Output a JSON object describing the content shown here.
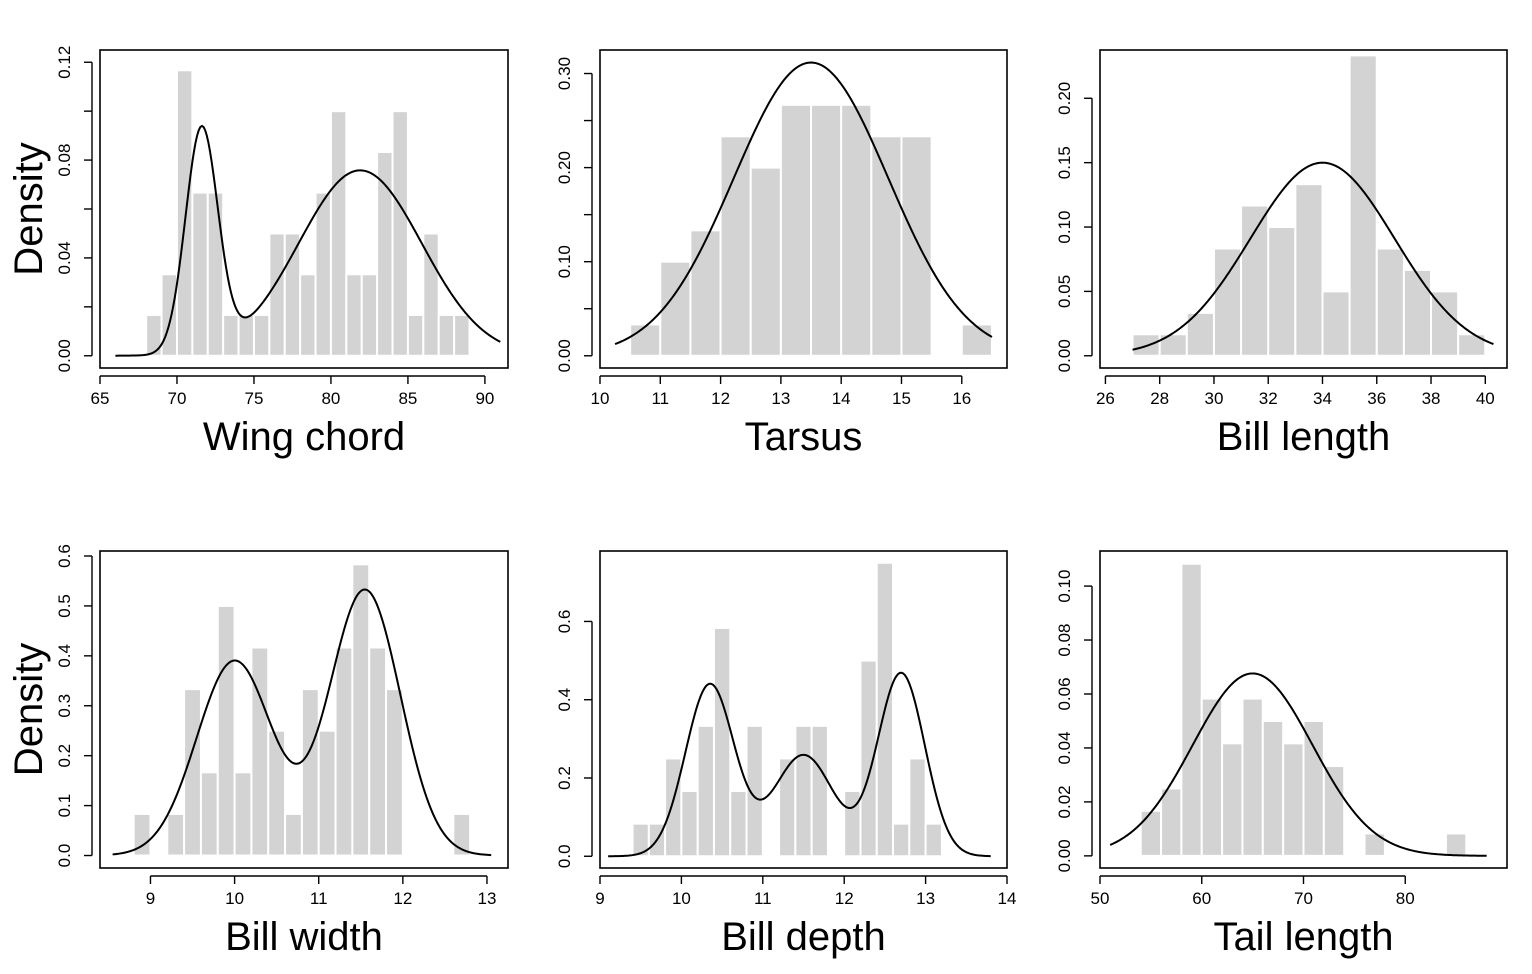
{
  "colors": {
    "bar_fill": "#d3d3d3",
    "curve": "#000000",
    "background": "#ffffff"
  },
  "ylabel": "Density",
  "chart_data": [
    {
      "type": "bar",
      "xlabel": "Wing chord",
      "ylabel": "Density",
      "xlim": [
        65,
        91.5
      ],
      "ylim": [
        -0.005,
        0.125
      ],
      "xticks": [
        65,
        70,
        75,
        80,
        85,
        90
      ],
      "yticks": [
        0.0,
        0.04,
        0.08,
        0.12
      ],
      "ytick_labels": [
        "0.00",
        "0.04",
        "0.08",
        "0.12"
      ],
      "yminor": [
        0.02,
        0.06,
        0.1
      ],
      "bin_start": 68,
      "bin_width": 1,
      "values": [
        0.0167,
        0.0333,
        0.1167,
        0.0667,
        0.0667,
        0.0167,
        0.0167,
        0.0167,
        0.05,
        0.05,
        0.0333,
        0.0667,
        0.1,
        0.0333,
        0.0333,
        0.0833,
        0.1,
        0.0167,
        0.05,
        0.0167,
        0.0167
      ],
      "curve": {
        "type": "normal_mixture",
        "x_range": [
          66,
          91
        ],
        "components": [
          {
            "w": 0.24,
            "mu": 71.6,
            "sd": 1.05
          },
          {
            "w": 0.76,
            "mu": 81.9,
            "sd": 4.0
          }
        ]
      }
    },
    {
      "type": "bar",
      "xlabel": "Tarsus",
      "ylabel": "",
      "xlim": [
        10,
        16.75
      ],
      "ylim": [
        -0.013,
        0.325
      ],
      "xticks": [
        10,
        11,
        12,
        13,
        14,
        15,
        16
      ],
      "yticks": [
        0.0,
        0.1,
        0.2,
        0.3
      ],
      "ytick_labels": [
        "0.00",
        "0.10",
        "0.20",
        "0.30"
      ],
      "yminor": [
        0.05,
        0.15,
        0.25
      ],
      "bin_start": 10.5,
      "bin_width": 0.5,
      "values": [
        0.0333,
        0.1,
        0.1333,
        0.2333,
        0.2,
        0.2667,
        0.2667,
        0.2667,
        0.2333,
        0.2333,
        0,
        0.0333
      ],
      "curve": {
        "type": "normal_mixture",
        "x_range": [
          10.25,
          16.5
        ],
        "components": [
          {
            "w": 1.0,
            "mu": 13.5,
            "sd": 1.28
          }
        ]
      }
    },
    {
      "type": "bar",
      "xlabel": "Bill length",
      "ylabel": "",
      "xlim": [
        25.8,
        40.8
      ],
      "ylim": [
        -0.0095,
        0.2375
      ],
      "xticks": [
        26,
        28,
        30,
        32,
        34,
        36,
        38,
        40
      ],
      "yticks": [
        0.0,
        0.05,
        0.1,
        0.15,
        0.2
      ],
      "ytick_labels": [
        "0.00",
        "0.05",
        "0.10",
        "0.15",
        "0.20"
      ],
      "yminor": [],
      "bin_start": 27,
      "bin_width": 1,
      "values": [
        0.0167,
        0.0167,
        0.0333,
        0.0833,
        0.1167,
        0.1,
        0.1333,
        0.05,
        0.2333,
        0.0833,
        0.0667,
        0.05,
        0.0167
      ],
      "curve": {
        "type": "normal_mixture",
        "x_range": [
          27,
          40.3
        ],
        "components": [
          {
            "w": 1.0,
            "mu": 34.0,
            "sd": 2.66
          }
        ]
      }
    },
    {
      "type": "bar",
      "xlabel": "Bill width",
      "ylabel": "Density",
      "xlim": [
        8.4,
        13.25
      ],
      "ylim": [
        -0.025,
        0.61
      ],
      "xticks": [
        9,
        10,
        11,
        12,
        13
      ],
      "yticks": [
        0.0,
        0.1,
        0.2,
        0.3,
        0.4,
        0.5,
        0.6
      ],
      "ytick_labels": [
        "0.0",
        "0.1",
        "0.2",
        "0.3",
        "0.4",
        "0.5",
        "0.6"
      ],
      "yminor": [],
      "bin_start": 8.8,
      "bin_width": 0.2,
      "values": [
        0.0833,
        0,
        0.0833,
        0.3333,
        0.1667,
        0.5,
        0.1667,
        0.4167,
        0.25,
        0.0833,
        0.3333,
        0.25,
        0.4167,
        0.5833,
        0.4167,
        0.3333,
        0,
        0,
        0,
        0.0833
      ],
      "curve": {
        "type": "normal_mixture",
        "x_range": [
          8.55,
          13.05
        ],
        "components": [
          {
            "w": 0.44,
            "mu": 10.0,
            "sd": 0.45
          },
          {
            "w": 0.56,
            "mu": 11.55,
            "sd": 0.42
          }
        ]
      }
    },
    {
      "type": "bar",
      "xlabel": "Bill depth",
      "ylabel": "",
      "xlim": [
        9.0,
        14.0
      ],
      "ylim": [
        -0.03,
        0.78
      ],
      "xticks": [
        9,
        10,
        11,
        12,
        13,
        14
      ],
      "yticks": [
        0.0,
        0.2,
        0.4,
        0.6
      ],
      "ytick_labels": [
        "0.0",
        "0.2",
        "0.4",
        "0.6"
      ],
      "yminor": [],
      "bin_start": 9.4,
      "bin_width": 0.2,
      "values": [
        0.0833,
        0.0833,
        0.25,
        0.1667,
        0.3333,
        0.5833,
        0.1667,
        0.3333,
        0,
        0.25,
        0.3333,
        0.3333,
        0,
        0.1667,
        0.5,
        0.75,
        0.0833,
        0.25,
        0.0833
      ],
      "curve": {
        "type": "normal_mixture",
        "x_range": [
          9.1,
          13.8
        ],
        "components": [
          {
            "w": 0.33,
            "mu": 10.35,
            "sd": 0.3
          },
          {
            "w": 0.24,
            "mu": 11.5,
            "sd": 0.37
          },
          {
            "w": 0.34,
            "mu": 12.7,
            "sd": 0.29
          }
        ]
      }
    },
    {
      "type": "bar",
      "xlabel": "Tail length",
      "ylabel": "",
      "xlim": [
        50,
        90
      ],
      "ylim": [
        -0.0045,
        0.113
      ],
      "xticks": [
        50,
        60,
        70,
        80
      ],
      "yticks": [
        0.0,
        0.02,
        0.04,
        0.06,
        0.08,
        0.1
      ],
      "ytick_labels": [
        "0.00",
        "0.02",
        "0.04",
        "0.06",
        "0.08",
        "0.10"
      ],
      "yminor": [],
      "bin_start": 54,
      "bin_width": 2,
      "values": [
        0.0167,
        0.025,
        0.1083,
        0.0583,
        0.0417,
        0.0583,
        0.05,
        0.0417,
        0.05,
        0.0333,
        0,
        0.0083,
        0,
        0,
        0,
        0.0083
      ],
      "curve": {
        "type": "normal_mixture",
        "x_range": [
          51,
          88
        ],
        "components": [
          {
            "w": 1.0,
            "mu": 65.0,
            "sd": 5.9
          }
        ]
      }
    }
  ]
}
